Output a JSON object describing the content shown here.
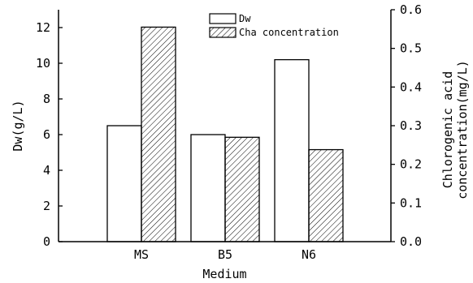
{
  "chart_data": {
    "type": "bar",
    "title": "",
    "xlabel": "Medium",
    "ylabel": "Dw(g/L)",
    "y2label_lines": [
      "Chlorogenic acid",
      "concentration(mg/L)"
    ],
    "categories": [
      "MS",
      "B5",
      "N6"
    ],
    "ylim": [
      0,
      13
    ],
    "y_ticks": [
      0,
      2,
      4,
      6,
      8,
      10,
      12
    ],
    "y2lim": [
      0,
      0.6
    ],
    "y2_ticks": [
      "0.0",
      "0.1",
      "0.2",
      "0.3",
      "0.4",
      "0.5",
      "0.6"
    ],
    "grid": false,
    "legend_position": "top-center",
    "series": [
      {
        "name": "Dw",
        "axis": "left",
        "fill": "white",
        "values": [
          6.5,
          6.0,
          10.2
        ]
      },
      {
        "name": "Cha concentration",
        "axis": "right",
        "fill": "hatched",
        "values": [
          0.555,
          0.27,
          0.238
        ]
      }
    ]
  }
}
